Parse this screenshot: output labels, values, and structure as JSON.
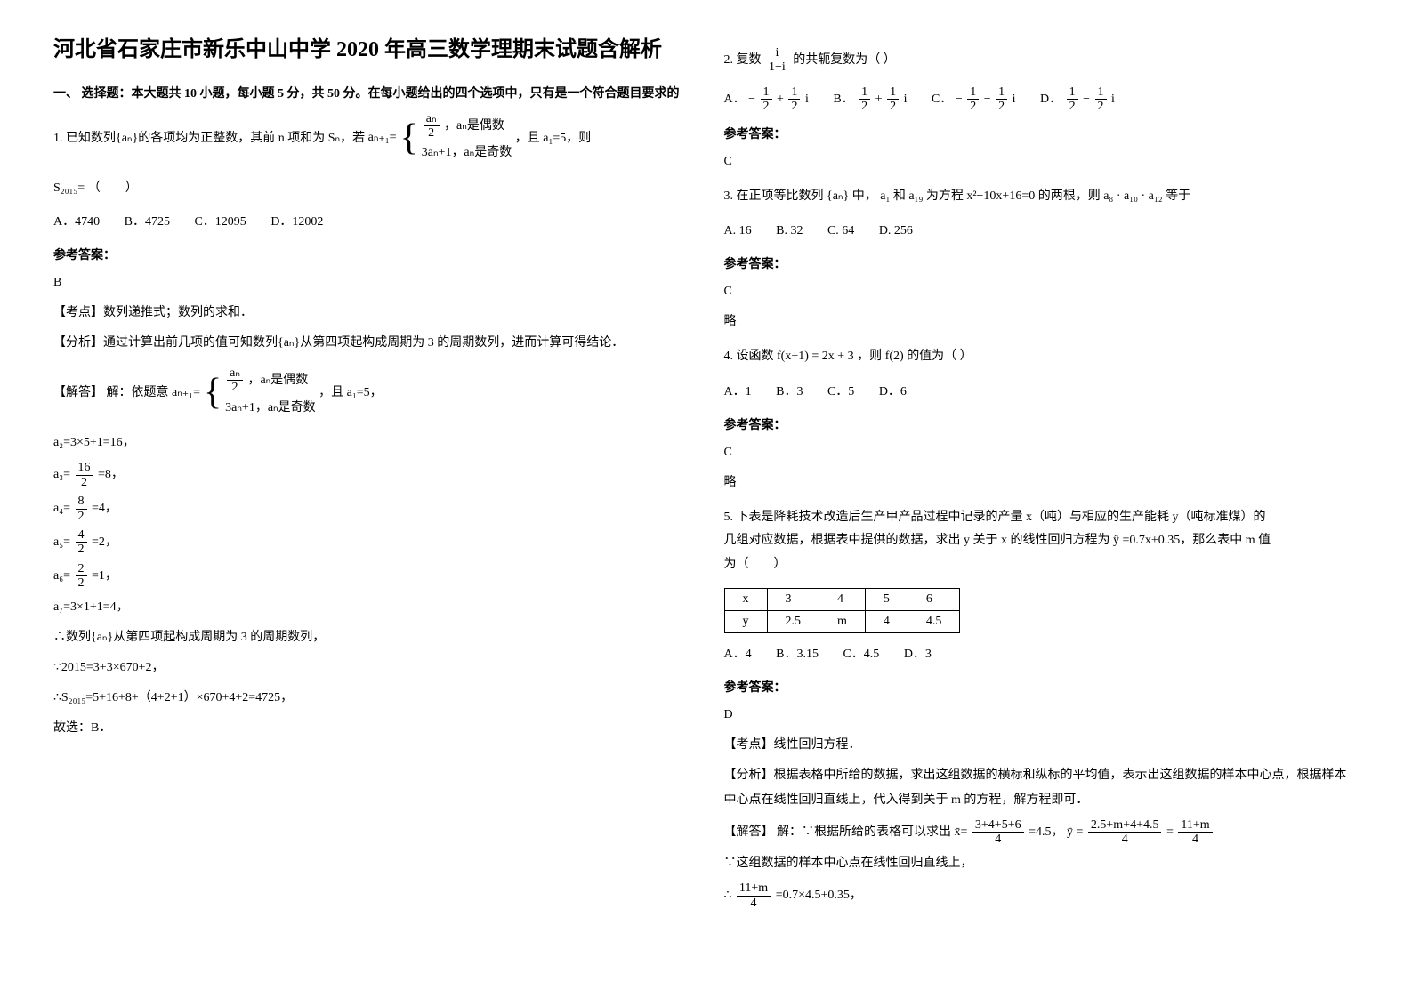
{
  "title": "河北省石家庄市新乐中山中学 2020 年高三数学理期末试题含解析",
  "sectionOne": "一、 选择题：本大题共 10 小题，每小题 5 分，共 50 分。在每小题给出的四个选项中，只有是一个符合题目要求的",
  "problem1": {
    "text": "1. 已知数列{aₙ}的各项均为正整数，其前 n 项和为 Sₙ，若",
    "formulaLabel": "aₙ₊₁=",
    "formulaLine1": "aₙ是偶数",
    "formulaLine2": "3aₙ+1，aₙ是奇数",
    "tail": "，且 a₁=5，则",
    "sn": "S₂₀₁₅= （　　）",
    "options": {
      "a": "A．4740",
      "b": "B．4725",
      "c": "C．12095",
      "d": "D．12002"
    }
  },
  "answer1": {
    "label": "参考答案：",
    "value": "B",
    "kaodianlabel": "【考点】",
    "kaodian": "数列递推式；数列的求和．",
    "fenxilabel": "【分析】",
    "fenxi": "通过计算出前几项的值可知数列{aₙ}从第四项起构成周期为 3 的周期数列，进而计算可得结论．",
    "jiedalabel": "【解答】",
    "jiedaIntro": "解：依题意",
    "tail": "，且 a₁=5，",
    "step1": "a₂=3×5+1=16，",
    "step2a": "a₃=",
    "step2b": "=8，",
    "step3a": "a₄=",
    "step3b": "=4，",
    "step4a": "a₅=",
    "step4b": "=2，",
    "step5a": "a₆=",
    "step5b": "=1，",
    "step6": "a₇=3×1+1=4，",
    "step7": "∴数列{aₙ}从第四项起构成周期为 3 的周期数列，",
    "step8": "∵2015=3+3×670+2，",
    "step9": "∴S₂₀₁₅=5+16+8+（4+2+1）×670+4+2=4725，",
    "step10": "故选：B．"
  },
  "problem2": {
    "intro": "2. 复数",
    "tail": "的共轭复数为（ ）",
    "options": {
      "a": "A．",
      "b": "B．",
      "c": "C．",
      "d": "D．"
    }
  },
  "answer2": {
    "label": "参考答案：",
    "value": "C"
  },
  "problem3": {
    "text": "3. 在正项等比数列",
    "mid1": "中，",
    "mid2": "和",
    "mid3": "为方程",
    "mid4": "的两根，则",
    "mid5": "等于",
    "options": {
      "a": "A. 16",
      "b": "B. 32",
      "c": "C. 64",
      "d": "D. 256"
    }
  },
  "answer3": {
    "label": "参考答案：",
    "value": "C",
    "lue": "略"
  },
  "problem4": {
    "text": "4. 设函数",
    "f1": "f(x+1) = 2x + 3",
    "mid": "，则",
    "f2": "f(2)",
    "tail": "的值为（         ）",
    "options": {
      "a": "A．1",
      "b": "B．3",
      "c": "C．5",
      "d": "D．6"
    }
  },
  "answer4": {
    "label": "参考答案：",
    "value": "C",
    "lue": "略"
  },
  "problem5": {
    "text1": "5. 下表是降耗技术改造后生产甲产品过程中记录的产量 x（吨）与相应的生产能耗 y（吨标准煤）的",
    "text2": "几组对应数据，根据表中提供的数据，求出 y 关于 x 的线性回归方程为",
    "yhat": "ŷ",
    "eq": "=0.7x+0.35，那么表中 m 值",
    "text3": "为（　　）",
    "tableHeaders": [
      "x",
      "3",
      "4",
      "5",
      "6"
    ],
    "tableRow": [
      "y",
      "2.5",
      "m",
      "4",
      "4.5"
    ],
    "options": {
      "a": "A．4",
      "b": "B．3.15",
      "c": "C．4.5",
      "d": "D．3"
    }
  },
  "answer5": {
    "label": "参考答案：",
    "value": "D",
    "kaodianlabel": "【考点】",
    "kaodian": "线性回归方程．",
    "fenxilabel": "【分析】",
    "fenxi": "根据表格中所给的数据，求出这组数据的横标和纵标的平均值，表示出这组数据的样本中心点，根据样本中心点在线性回归直线上，代入得到关于 m 的方程，解方程即可．",
    "jiedalabel": "【解答】",
    "jieda1": "解：∵根据所给的表格可以求出",
    "xbar": "x̄=",
    "xfrac_num": "3+4+5+6",
    "xfrac_den": "4",
    "xval": "=4.5，",
    "ybar": "ȳ =",
    "yfrac_num": "2.5+m+4+4.5",
    "yfrac_den": "4",
    "yeq": "=",
    "yfrac2_num": "11+m",
    "yfrac2_den": "4",
    "jieda2": "∵这组数据的样本中心点在线性回归直线上，",
    "jieda3a": "∴",
    "jieda3_num": "11+m",
    "jieda3_den": "4",
    "jieda3b": "=0.7×4.5+0.35，"
  },
  "fracs": {
    "an2": {
      "num": "aₙ",
      "den": "2"
    },
    "f16_2": {
      "num": "16",
      "den": "2"
    },
    "f8_2": {
      "num": "8",
      "den": "2"
    },
    "f4_2": {
      "num": "4",
      "den": "2"
    },
    "f2_2": {
      "num": "2",
      "den": "2"
    },
    "i_1mi": {
      "num": "i",
      "den": "1−i"
    },
    "halfhalf1": {
      "pre": "−",
      "n1": "1",
      "d1": "2",
      "mid": "+",
      "n2": "1",
      "d2": "2",
      "suf": "i"
    },
    "halfhalf2": {
      "n1": "1",
      "d1": "2",
      "mid": "+",
      "n2": "1",
      "d2": "2",
      "suf": "i"
    },
    "halfhalf3": {
      "pre": "−",
      "n1": "1",
      "d1": "2",
      "mid": "−",
      "n2": "1",
      "d2": "2",
      "suf": "i"
    },
    "halfhalf4": {
      "n1": "1",
      "d1": "2",
      "mid": "−",
      "n2": "1",
      "d2": "2",
      "suf": "i"
    }
  },
  "p3syms": {
    "an": "{aₙ}",
    "a1": "a₁",
    "a19": "a₁₉",
    "eq": "x²−10x+16=0",
    "prod": "a₈ · a₁₀ · a₁₂"
  }
}
